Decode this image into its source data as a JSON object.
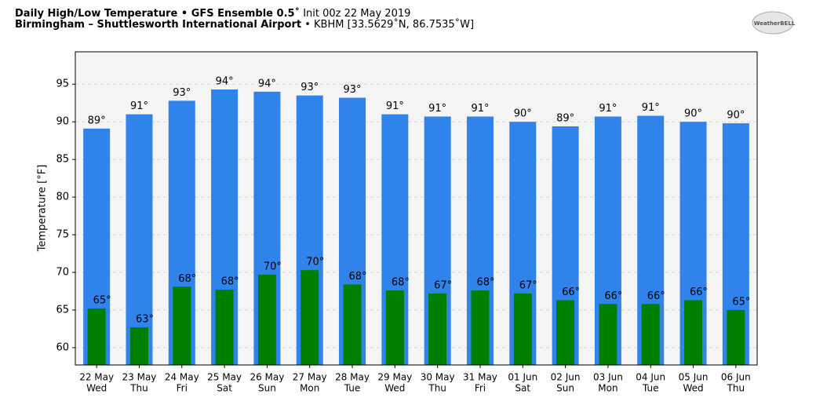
{
  "chart_data": {
    "type": "bar",
    "title": "Daily High/Low Temperature • GFS Ensemble 0.5˚",
    "title_detail": "Init 00z 22 May 2019",
    "subtitle": "Birmingham – Shuttlesworth International Airport",
    "subtitle_detail": "• KBHM [33.5629˚N, 86.7535˚W]",
    "logo": "WeatherBELL",
    "y_label": "Temperature [°F]",
    "categories": [
      "22 May",
      "23 May",
      "24 May",
      "25 May",
      "26 May",
      "27 May",
      "28 May",
      "29 May",
      "30 May",
      "31 May",
      "01 Jun",
      "02 Jun",
      "03 Jun",
      "04 Jun",
      "05 Jun",
      "06 Jun"
    ],
    "weekdays": [
      "Wed",
      "Thu",
      "Fri",
      "Sat",
      "Sun",
      "Mon",
      "Tue",
      "Wed",
      "Thu",
      "Fri",
      "Sat",
      "Sun",
      "Mon",
      "Tue",
      "Wed",
      "Thu"
    ],
    "series": [
      {
        "color": "#2f83eb",
        "values": [
          89.1,
          91.0,
          92.8,
          94.3,
          94.0,
          93.5,
          93.2,
          91.0,
          90.7,
          90.7,
          90.0,
          89.4,
          90.7,
          90.8,
          90.0,
          89.8
        ],
        "value_labels": [
          "89°",
          "91°",
          "93°",
          "94°",
          "94°",
          "93°",
          "93°",
          "91°",
          "91°",
          "91°",
          "90°",
          "89°",
          "91°",
          "91°",
          "90°",
          "90°"
        ]
      },
      {
        "color": "#008000",
        "values": [
          65.2,
          62.7,
          68.1,
          67.7,
          69.7,
          70.3,
          68.4,
          67.6,
          67.2,
          67.6,
          67.2,
          66.3,
          65.8,
          65.8,
          66.3,
          65.0
        ],
        "value_labels": [
          "65°",
          "63°",
          "68°",
          "68°",
          "70°",
          "70°",
          "68°",
          "68°",
          "67°",
          "68°",
          "67°",
          "66°",
          "66°",
          "66°",
          "66°",
          "65°"
        ]
      }
    ],
    "ylim": [
      57.7,
      99.3
    ],
    "yticks": [
      60,
      65,
      70,
      75,
      80,
      85,
      90,
      95
    ],
    "grid": true
  }
}
